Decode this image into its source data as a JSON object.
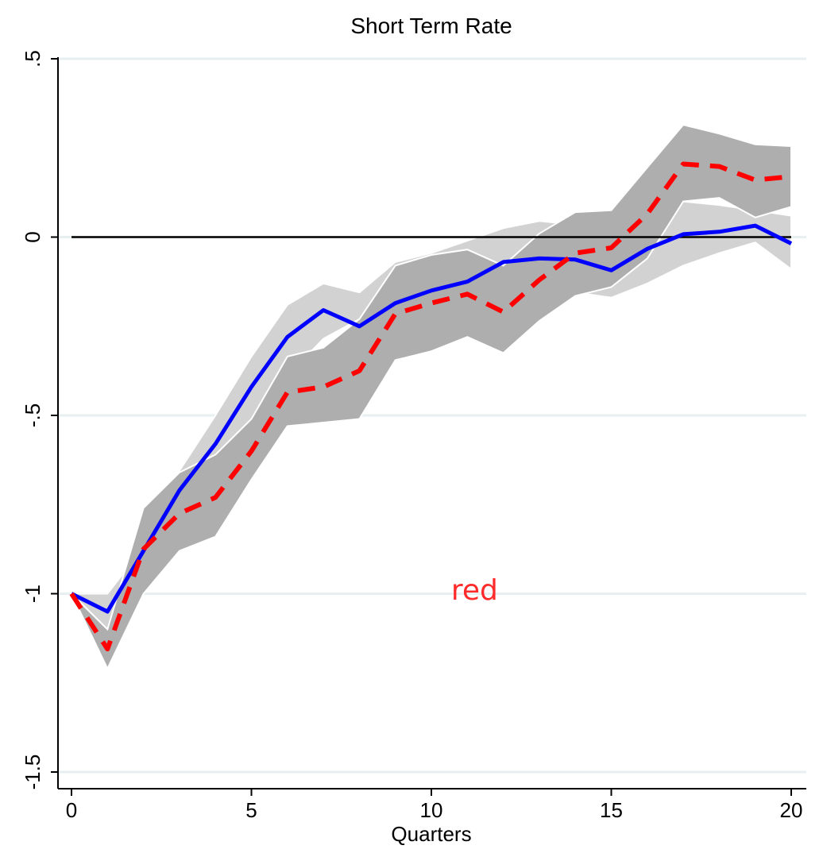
{
  "chart_data": {
    "type": "line",
    "title": "Short Term Rate",
    "xlabel": "Quarters",
    "ylabel": "",
    "xlim": [
      0,
      20
    ],
    "ylim": [
      -1.5,
      0.5
    ],
    "x_ticks": [
      0,
      5,
      10,
      15,
      20
    ],
    "x_tick_labels": [
      "0",
      "5",
      "10",
      "15",
      "20"
    ],
    "y_ticks": [
      0.5,
      0,
      -0.5,
      -1,
      -1.5
    ],
    "y_tick_labels": [
      ".5",
      "0",
      "-.5",
      "-1",
      "-1.5"
    ],
    "grid": "horizontal",
    "legend": "none",
    "reference_line_y": 0,
    "x": [
      0,
      1,
      2,
      3,
      4,
      5,
      6,
      7,
      8,
      9,
      10,
      11,
      12,
      13,
      14,
      15,
      16,
      17,
      18,
      19,
      20
    ],
    "series": [
      {
        "style": "solid",
        "color": "#0000ff",
        "values": [
          -1.0,
          -1.05,
          -0.88,
          -0.71,
          -0.58,
          -0.42,
          -0.28,
          -0.205,
          -0.25,
          -0.185,
          -0.15,
          -0.125,
          -0.07,
          -0.06,
          -0.063,
          -0.093,
          -0.033,
          0.008,
          0.015,
          0.032,
          -0.018
        ],
        "band_color": "#d2d2d2",
        "band_upper": [
          -1.0,
          -1.0,
          -0.87,
          -0.655,
          -0.5,
          -0.335,
          -0.19,
          -0.13,
          -0.155,
          -0.07,
          -0.045,
          -0.01,
          0.025,
          0.045,
          0.035,
          0.005,
          0.025,
          0.1,
          0.09,
          0.075,
          0.06
        ],
        "band_lower": [
          -1.0,
          -1.1,
          -0.95,
          -0.78,
          -0.66,
          -0.52,
          -0.39,
          -0.285,
          -0.23,
          -0.275,
          -0.25,
          -0.185,
          -0.15,
          -0.1,
          -0.155,
          -0.17,
          -0.13,
          -0.08,
          -0.045,
          -0.015,
          -0.09
        ]
      },
      {
        "style": "dashed",
        "color": "#ff0000",
        "values": [
          -1.0,
          -1.155,
          -0.875,
          -0.775,
          -0.73,
          -0.6,
          -0.435,
          -0.42,
          -0.375,
          -0.215,
          -0.185,
          -0.16,
          -0.21,
          -0.12,
          -0.045,
          -0.03,
          0.065,
          0.205,
          0.198,
          0.16,
          0.17
        ],
        "band_color": "#aeaeae",
        "band_upper": [
          -1.0,
          -1.1,
          -0.76,
          -0.66,
          -0.61,
          -0.51,
          -0.335,
          -0.31,
          -0.23,
          -0.08,
          -0.05,
          -0.035,
          -0.08,
          0.01,
          0.07,
          0.075,
          0.195,
          0.315,
          0.29,
          0.26,
          0.255
        ],
        "band_lower": [
          -1.0,
          -1.21,
          -1.0,
          -0.88,
          -0.84,
          -0.68,
          -0.53,
          -0.52,
          -0.51,
          -0.345,
          -0.32,
          -0.28,
          -0.325,
          -0.235,
          -0.165,
          -0.14,
          -0.06,
          0.1,
          0.11,
          0.055,
          0.085
        ]
      }
    ],
    "annotation": {
      "text": "red",
      "x": 11.2,
      "y": -0.99,
      "color": "#ff2a2a"
    }
  }
}
